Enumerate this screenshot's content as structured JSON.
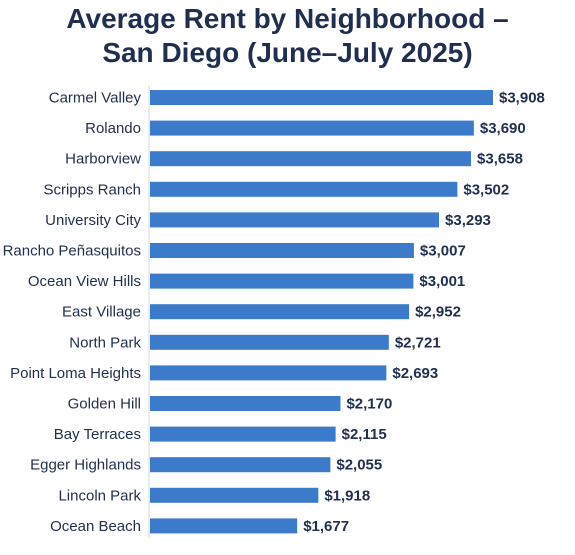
{
  "chart_data": {
    "type": "bar",
    "orientation": "horizontal",
    "title_line1": "Average Rent by Neighborhood –",
    "title_line2": "San Diego (June–July 2025)",
    "categories": [
      "Carmel Valley",
      "Rolando",
      "Harborview",
      "Scripps Ranch",
      "University City",
      "Rancho Peñasquitos",
      "Ocean View Hills",
      "East Village",
      "North Park",
      "Point Loma Heights",
      "Golden Hill",
      "Bay Terraces",
      "Egger Highlands",
      "Lincoln Park",
      "Ocean Beach"
    ],
    "values": [
      3908,
      3690,
      3658,
      3502,
      3293,
      3007,
      3001,
      2952,
      2721,
      2693,
      2170,
      2115,
      2055,
      1918,
      1677
    ],
    "value_labels": [
      "$3,908",
      "$3,690",
      "$3,658",
      "$3,502",
      "$3,293",
      "$3,007",
      "$3,001",
      "$2,952",
      "$2,721",
      "$2,693",
      "$2,170",
      "$2,115",
      "$2,055",
      "$1,918",
      "$1,677"
    ],
    "xlim": [
      0,
      3908
    ],
    "grid": false,
    "legend": "none",
    "bar_color": "#3b7bc9"
  }
}
